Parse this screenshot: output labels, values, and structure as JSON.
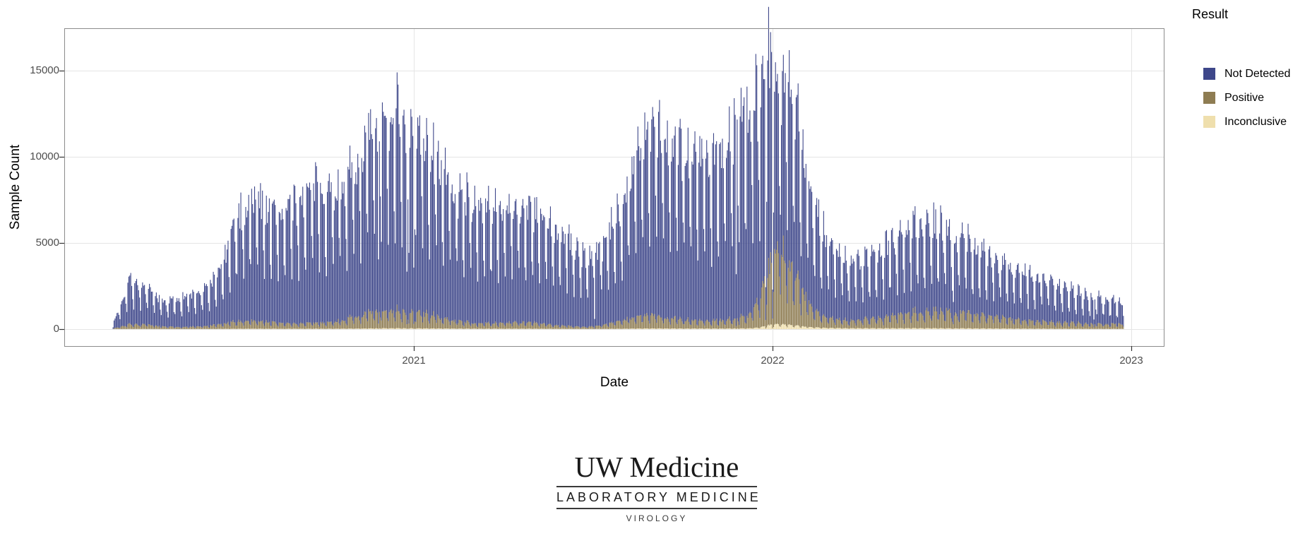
{
  "chart_data": {
    "type": "bar",
    "stacked": true,
    "title": "",
    "xlabel": "Date",
    "ylabel": "Sample Count",
    "legend_title": "Result",
    "legend_position": "right",
    "grid": true,
    "background": "#ffffff",
    "gridline_color": "#e5e5e5",
    "panel_border_color": "#8c8c8c",
    "tick_label_color": "#4d4d4d",
    "x_ticks": [
      "2021",
      "2022",
      "2023"
    ],
    "x_tick_dates": [
      "2021-01-01",
      "2022-01-01",
      "2023-01-01"
    ],
    "y_ticks": [
      0,
      5000,
      10000,
      15000
    ],
    "ylim": [
      0,
      17450
    ],
    "x_range_dates": [
      "2020-03-01",
      "2022-12-24"
    ],
    "series": [
      {
        "name": "Not Detected",
        "color": "#3e478a",
        "stack_order": 3
      },
      {
        "name": "Positive",
        "color": "#8e7c52",
        "stack_order": 2
      },
      {
        "name": "Inconclusive",
        "color": "#efdfad",
        "stack_order": 1
      }
    ],
    "sampling": "one bar per day; values synthesized from envelope_anchors (weekday peak magnitudes read off the plot) with weekday_factors and small jitter",
    "weekday_factors": [
      0.42,
      0.95,
      1.0,
      0.97,
      0.93,
      0.86,
      0.55
    ],
    "low_volume_days": [
      "2020-11-26",
      "2020-12-25",
      "2021-01-01",
      "2021-07-04",
      "2021-11-25",
      "2021-12-25",
      "2022-01-01",
      "2022-07-04",
      "2022-11-24",
      "2022-12-25"
    ],
    "envelope_anchors": {
      "columns": [
        "date",
        "total_stacked",
        "positive",
        "inconclusive"
      ],
      "rows": [
        [
          "2020-03-01",
          300,
          30,
          4
        ],
        [
          "2020-03-18",
          3200,
          300,
          12
        ],
        [
          "2020-04-05",
          2500,
          260,
          12
        ],
        [
          "2020-04-22",
          1700,
          140,
          8
        ],
        [
          "2020-05-10",
          2000,
          130,
          8
        ],
        [
          "2020-06-01",
          2400,
          160,
          10
        ],
        [
          "2020-06-18",
          3600,
          280,
          14
        ],
        [
          "2020-07-08",
          7200,
          480,
          25
        ],
        [
          "2020-07-24",
          8300,
          520,
          28
        ],
        [
          "2020-08-12",
          7100,
          380,
          24
        ],
        [
          "2020-09-01",
          7600,
          320,
          24
        ],
        [
          "2020-09-20",
          8800,
          360,
          26
        ],
        [
          "2020-10-10",
          8700,
          420,
          28
        ],
        [
          "2020-11-02",
          9900,
          700,
          35
        ],
        [
          "2020-11-16",
          12100,
          950,
          45
        ],
        [
          "2020-12-02",
          12600,
          1050,
          55
        ],
        [
          "2020-12-15",
          14200,
          1150,
          60
        ],
        [
          "2020-12-27",
          11600,
          900,
          50
        ],
        [
          "2021-01-06",
          12200,
          1000,
          50
        ],
        [
          "2021-01-20",
          11000,
          800,
          45
        ],
        [
          "2021-02-10",
          8600,
          520,
          35
        ],
        [
          "2021-03-02",
          7900,
          360,
          28
        ],
        [
          "2021-03-22",
          7300,
          320,
          26
        ],
        [
          "2021-04-12",
          8000,
          420,
          30
        ],
        [
          "2021-05-03",
          7100,
          360,
          26
        ],
        [
          "2021-05-20",
          6400,
          260,
          22
        ],
        [
          "2021-06-10",
          5300,
          160,
          16
        ],
        [
          "2021-06-25",
          4400,
          130,
          14
        ],
        [
          "2021-07-12",
          5000,
          220,
          16
        ],
        [
          "2021-07-26",
          6900,
          460,
          24
        ],
        [
          "2021-08-10",
          9900,
          700,
          34
        ],
        [
          "2021-08-25",
          11900,
          820,
          42
        ],
        [
          "2021-09-10",
          12500,
          760,
          44
        ],
        [
          "2021-09-27",
          11600,
          620,
          40
        ],
        [
          "2021-10-12",
          10900,
          520,
          38
        ],
        [
          "2021-10-26",
          10400,
          470,
          36
        ],
        [
          "2021-11-10",
          11100,
          520,
          38
        ],
        [
          "2021-11-23",
          12100,
          580,
          42
        ],
        [
          "2021-12-06",
          13400,
          750,
          48
        ],
        [
          "2021-12-17",
          14600,
          1600,
          90
        ],
        [
          "2021-12-28",
          16800,
          3600,
          240
        ],
        [
          "2022-01-06",
          15000,
          4800,
          320
        ],
        [
          "2022-01-17",
          15800,
          4200,
          280
        ],
        [
          "2022-01-28",
          12600,
          2600,
          200
        ],
        [
          "2022-02-10",
          8100,
          1250,
          120
        ],
        [
          "2022-02-24",
          5600,
          650,
          80
        ],
        [
          "2022-03-15",
          4300,
          480,
          60
        ],
        [
          "2022-04-01",
          4100,
          520,
          55
        ],
        [
          "2022-04-20",
          4700,
          640,
          55
        ],
        [
          "2022-05-10",
          5900,
          920,
          60
        ],
        [
          "2022-05-25",
          6600,
          1020,
          62
        ],
        [
          "2022-06-10",
          6400,
          1020,
          58
        ],
        [
          "2022-07-01",
          5900,
          1000,
          52
        ],
        [
          "2022-07-20",
          5300,
          960,
          48
        ],
        [
          "2022-08-10",
          4500,
          820,
          42
        ],
        [
          "2022-09-01",
          3900,
          620,
          36
        ],
        [
          "2022-09-21",
          3400,
          520,
          30
        ],
        [
          "2022-10-12",
          3000,
          420,
          26
        ],
        [
          "2022-11-01",
          2400,
          360,
          22
        ],
        [
          "2022-11-20",
          2000,
          310,
          18
        ],
        [
          "2022-12-06",
          1800,
          290,
          16
        ],
        [
          "2022-12-24",
          1600,
          300,
          16
        ]
      ]
    }
  },
  "y_axis": {
    "label_15000": "15000",
    "label_10000": "10000",
    "label_5000": "5000",
    "label_0": "0"
  },
  "x_axis": {
    "label_2021": "2021",
    "label_2022": "2022",
    "label_2023": "2023"
  },
  "logo": {
    "brand": "UW Medicine",
    "line1": "LABORATORY MEDICINE",
    "line2": "VIROLOGY"
  }
}
